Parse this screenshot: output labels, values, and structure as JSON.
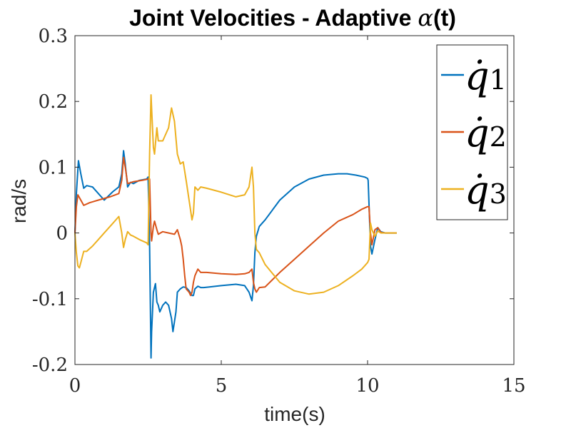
{
  "chart_data": {
    "type": "line",
    "title": "Joint Velocities - Adaptive ",
    "title_math": "α",
    "title_suffix": "(t)",
    "xlabel": "time(s)",
    "ylabel": "rad/s",
    "xlim": [
      0,
      15
    ],
    "ylim": [
      -0.2,
      0.3
    ],
    "xticks": [
      0,
      5,
      10,
      15
    ],
    "yticks": [
      -0.2,
      -0.1,
      0,
      0.1,
      0.2,
      0.3
    ],
    "ytick_labels": [
      "-0.2",
      "-0.1",
      "0",
      "0.1",
      "0.2",
      "0.3"
    ],
    "grid": false,
    "legend_position": "top-right",
    "series": [
      {
        "name": "q̇",
        "subscript": "1",
        "color": "#0072BD",
        "x": [
          0,
          0.05,
          0.12,
          0.2,
          0.3,
          0.4,
          0.6,
          0.8,
          1.0,
          1.3,
          1.5,
          1.6,
          1.66,
          1.72,
          1.8,
          1.9,
          2.0,
          2.2,
          2.45,
          2.5,
          2.55,
          2.6,
          2.62,
          2.68,
          2.75,
          2.8,
          2.85,
          2.9,
          3.0,
          3.1,
          3.2,
          3.3,
          3.35,
          3.45,
          3.5,
          3.6,
          3.7,
          3.8,
          3.9,
          4.0,
          4.05,
          4.1,
          4.2,
          4.3,
          4.4,
          4.6,
          5.0,
          5.5,
          5.8,
          5.95,
          6.05,
          6.1,
          6.15,
          6.2,
          6.3,
          6.5,
          7.0,
          7.5,
          8.0,
          8.5,
          9.0,
          9.3,
          9.6,
          9.9,
          10.0,
          10.02,
          10.1,
          10.15,
          10.25,
          10.35,
          10.45,
          10.6,
          10.8,
          11.0
        ],
        "values": [
          0.0,
          0.06,
          0.11,
          0.09,
          0.068,
          0.072,
          0.07,
          0.06,
          0.05,
          0.063,
          0.07,
          0.09,
          0.125,
          0.105,
          0.07,
          0.077,
          0.075,
          0.08,
          0.082,
          0.085,
          -0.02,
          -0.19,
          -0.15,
          -0.09,
          -0.077,
          -0.105,
          -0.11,
          -0.12,
          -0.11,
          -0.105,
          -0.11,
          -0.13,
          -0.15,
          -0.12,
          -0.09,
          -0.085,
          -0.082,
          -0.083,
          -0.088,
          -0.095,
          -0.095,
          -0.085,
          -0.081,
          -0.083,
          -0.083,
          -0.082,
          -0.08,
          -0.078,
          -0.08,
          -0.09,
          -0.103,
          -0.08,
          -0.03,
          -0.005,
          0.01,
          0.02,
          0.05,
          0.07,
          0.082,
          0.088,
          0.09,
          0.09,
          0.088,
          0.085,
          0.083,
          0.08,
          -0.02,
          -0.032,
          -0.01,
          0.008,
          0.002,
          0.0,
          0.0,
          0.0
        ]
      },
      {
        "name": "q̇",
        "subscript": "2",
        "color": "#D95319",
        "x": [
          0,
          0.05,
          0.1,
          0.2,
          0.3,
          0.5,
          0.8,
          1.2,
          1.5,
          1.6,
          1.66,
          1.72,
          1.8,
          2.0,
          2.3,
          2.5,
          2.55,
          2.6,
          2.62,
          2.68,
          2.72,
          2.8,
          2.85,
          3.0,
          3.2,
          3.4,
          3.5,
          3.6,
          3.65,
          3.7,
          3.75,
          3.8,
          3.9,
          3.95,
          4.0,
          4.05,
          4.1,
          4.2,
          4.3,
          4.5,
          5.0,
          5.5,
          5.8,
          5.95,
          6.05,
          6.1,
          6.15,
          6.2,
          6.3,
          6.5,
          7.0,
          7.5,
          8.0,
          8.5,
          9.0,
          9.5,
          9.8,
          10.0,
          10.05,
          10.1,
          10.15,
          10.25,
          10.35,
          10.45,
          10.6,
          10.8,
          11.0
        ],
        "values": [
          0.0,
          0.04,
          0.058,
          0.05,
          0.042,
          0.046,
          0.05,
          0.055,
          0.06,
          0.08,
          0.115,
          0.1,
          0.075,
          0.078,
          0.08,
          0.082,
          0.082,
          0.0,
          -0.012,
          0.01,
          0.018,
          0.005,
          -0.002,
          0.002,
          0.0,
          -0.002,
          0.005,
          -0.01,
          -0.02,
          -0.04,
          -0.065,
          -0.085,
          -0.09,
          -0.095,
          -0.09,
          -0.075,
          -0.065,
          -0.055,
          -0.06,
          -0.06,
          -0.062,
          -0.063,
          -0.062,
          -0.06,
          -0.055,
          -0.075,
          -0.085,
          -0.09,
          -0.083,
          -0.082,
          -0.06,
          -0.04,
          -0.02,
          0.0,
          0.018,
          0.028,
          0.036,
          0.04,
          0.04,
          0.0,
          -0.018,
          0.005,
          0.008,
          0.001,
          0.0,
          0.0,
          0.0
        ]
      },
      {
        "name": "q̇",
        "subscript": "3",
        "color": "#EDB120",
        "x": [
          0,
          0.05,
          0.1,
          0.15,
          0.2,
          0.3,
          0.4,
          0.6,
          0.8,
          1.0,
          1.3,
          1.5,
          1.6,
          1.66,
          1.72,
          1.8,
          1.9,
          2.0,
          2.2,
          2.45,
          2.5,
          2.55,
          2.6,
          2.62,
          2.68,
          2.72,
          2.8,
          2.85,
          3.0,
          3.2,
          3.3,
          3.4,
          3.5,
          3.6,
          3.7,
          3.8,
          3.9,
          4.0,
          4.05,
          4.1,
          4.2,
          4.3,
          4.5,
          5.0,
          5.5,
          5.8,
          5.95,
          6.05,
          6.1,
          6.15,
          6.2,
          6.3,
          6.5,
          7.0,
          7.5,
          8.0,
          8.5,
          9.0,
          9.5,
          9.8,
          10.0,
          10.05,
          10.1,
          10.15,
          10.25,
          10.35,
          10.45,
          10.6,
          10.8,
          11.0
        ],
        "values": [
          0.0,
          -0.03,
          -0.05,
          -0.053,
          -0.045,
          -0.028,
          -0.028,
          -0.02,
          -0.01,
          0.0,
          0.015,
          0.025,
          0.0,
          -0.022,
          -0.01,
          0.002,
          -0.003,
          -0.005,
          -0.01,
          -0.015,
          -0.018,
          0.12,
          0.21,
          0.19,
          0.13,
          0.12,
          0.16,
          0.14,
          0.14,
          0.16,
          0.19,
          0.17,
          0.12,
          0.105,
          0.108,
          0.08,
          0.05,
          0.02,
          0.03,
          0.07,
          0.065,
          0.07,
          0.068,
          0.062,
          0.055,
          0.058,
          0.07,
          0.1,
          0.07,
          0.0,
          -0.025,
          -0.03,
          -0.048,
          -0.075,
          -0.088,
          -0.093,
          -0.09,
          -0.08,
          -0.065,
          -0.055,
          -0.045,
          -0.04,
          0.015,
          0.005,
          -0.005,
          0.003,
          0.0,
          0.0,
          0.0,
          0.0
        ]
      }
    ]
  }
}
